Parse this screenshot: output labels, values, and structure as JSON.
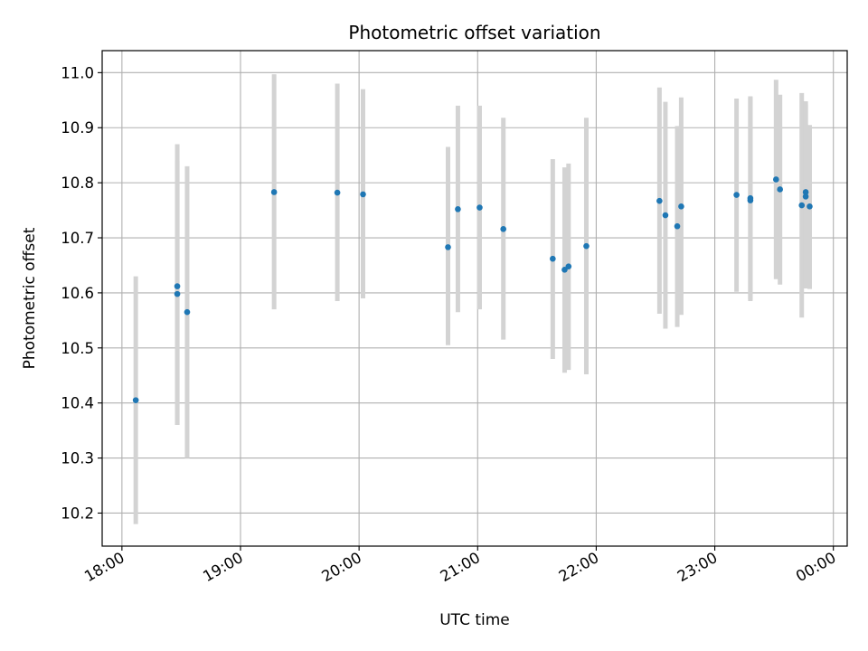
{
  "chart_data": {
    "type": "scatter",
    "title": "Photometric offset variation",
    "xlabel": "UTC time",
    "ylabel": "Photometric offset",
    "x_ticks": [
      "18:00",
      "19:00",
      "20:00",
      "21:00",
      "22:00",
      "23:00",
      "00:00"
    ],
    "x_tick_minutes": [
      1080,
      1140,
      1200,
      1260,
      1320,
      1380,
      1440
    ],
    "xlim": [
      "17:50",
      "00:07"
    ],
    "y_ticks": [
      "10.2",
      "10.3",
      "10.4",
      "10.5",
      "10.6",
      "10.7",
      "10.8",
      "10.9",
      "11.0"
    ],
    "y_tick_values": [
      10.2,
      10.3,
      10.4,
      10.5,
      10.6,
      10.7,
      10.8,
      10.9,
      11.0
    ],
    "ylim": [
      10.14,
      11.04
    ],
    "grid": true,
    "point_color": "#1f77b4",
    "errorbar_color": "#d3d3d3",
    "points": [
      {
        "time": "18:07",
        "y": 10.405,
        "low": 10.18,
        "high": 10.63
      },
      {
        "time": "18:28",
        "y": 10.612,
        "low": 10.36,
        "high": 10.87
      },
      {
        "time": "18:28",
        "y": 10.598,
        "low": 10.36,
        "high": 10.84
      },
      {
        "time": "18:33",
        "y": 10.565,
        "low": 10.3,
        "high": 10.83
      },
      {
        "time": "19:17",
        "y": 10.783,
        "low": 10.57,
        "high": 10.997
      },
      {
        "time": "19:49",
        "y": 10.782,
        "low": 10.585,
        "high": 10.98
      },
      {
        "time": "20:02",
        "y": 10.779,
        "low": 10.59,
        "high": 10.97
      },
      {
        "time": "20:45",
        "y": 10.683,
        "low": 10.505,
        "high": 10.865
      },
      {
        "time": "20:50",
        "y": 10.752,
        "low": 10.565,
        "high": 10.94
      },
      {
        "time": "21:01",
        "y": 10.755,
        "low": 10.57,
        "high": 10.94
      },
      {
        "time": "21:13",
        "y": 10.716,
        "low": 10.515,
        "high": 10.918
      },
      {
        "time": "21:38",
        "y": 10.662,
        "low": 10.48,
        "high": 10.843
      },
      {
        "time": "21:44",
        "y": 10.642,
        "low": 10.455,
        "high": 10.828
      },
      {
        "time": "21:46",
        "y": 10.648,
        "low": 10.46,
        "high": 10.835
      },
      {
        "time": "21:55",
        "y": 10.685,
        "low": 10.452,
        "high": 10.918
      },
      {
        "time": "22:32",
        "y": 10.767,
        "low": 10.562,
        "high": 10.973
      },
      {
        "time": "22:35",
        "y": 10.741,
        "low": 10.535,
        "high": 10.947
      },
      {
        "time": "22:41",
        "y": 10.721,
        "low": 10.538,
        "high": 10.903
      },
      {
        "time": "22:43",
        "y": 10.757,
        "low": 10.56,
        "high": 10.955
      },
      {
        "time": "23:11",
        "y": 10.778,
        "low": 10.602,
        "high": 10.953
      },
      {
        "time": "23:18",
        "y": 10.768,
        "low": 10.585,
        "high": 10.955
      },
      {
        "time": "23:18",
        "y": 10.772,
        "low": 10.588,
        "high": 10.957
      },
      {
        "time": "23:31",
        "y": 10.806,
        "low": 10.625,
        "high": 10.987
      },
      {
        "time": "23:33",
        "y": 10.788,
        "low": 10.615,
        "high": 10.96
      },
      {
        "time": "23:44",
        "y": 10.759,
        "low": 10.555,
        "high": 10.963
      },
      {
        "time": "23:46",
        "y": 10.775,
        "low": 10.608,
        "high": 10.942
      },
      {
        "time": "23:46",
        "y": 10.783,
        "low": 10.61,
        "high": 10.948
      },
      {
        "time": "23:48",
        "y": 10.757,
        "low": 10.607,
        "high": 10.905
      }
    ]
  }
}
